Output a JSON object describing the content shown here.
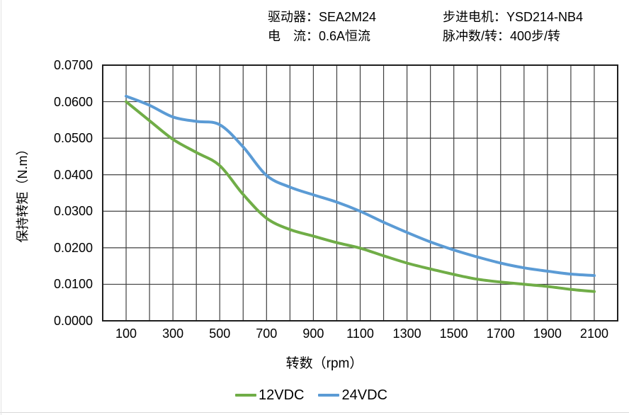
{
  "header": {
    "driver": "驱动器：SEA2M24",
    "motor": "步进电机：YSD214-NB4",
    "current": "电　流：0.6A恒流",
    "pulses": "脉冲数/转：400步/转"
  },
  "chart_data": {
    "type": "line",
    "x": [
      100,
      200,
      300,
      400,
      500,
      600,
      700,
      800,
      900,
      1000,
      1100,
      1200,
      1300,
      1400,
      1500,
      1600,
      1700,
      1800,
      1900,
      2000,
      2100
    ],
    "series": [
      {
        "name": "12VDC",
        "color": "#70AD47",
        "values": [
          0.06,
          0.0548,
          0.0497,
          0.0461,
          0.0425,
          0.0346,
          0.0281,
          0.025,
          0.0232,
          0.0214,
          0.0199,
          0.0178,
          0.0158,
          0.0142,
          0.0127,
          0.0114,
          0.0106,
          0.01,
          0.0094,
          0.0086,
          0.008
        ]
      },
      {
        "name": "24VDC",
        "color": "#5B9BD5",
        "values": [
          0.0615,
          0.059,
          0.0558,
          0.0546,
          0.0537,
          0.0476,
          0.0398,
          0.0366,
          0.0345,
          0.0325,
          0.03,
          0.027,
          0.0242,
          0.0216,
          0.0194,
          0.0175,
          0.0158,
          0.0145,
          0.0136,
          0.0128,
          0.0124
        ]
      }
    ],
    "xlabel": "转数（rpm）",
    "ylabel": "保持转矩（N.m）",
    "xlim": [
      0,
      2200
    ],
    "ylim": [
      0,
      0.07
    ],
    "x_gridline_step": 100,
    "y_gridline_step": 0.01,
    "xticks": [
      "100",
      "300",
      "500",
      "700",
      "900",
      "1100",
      "1300",
      "1500",
      "1700",
      "1900",
      "2100"
    ],
    "yticks": [
      "0.0700",
      "0.0600",
      "0.0500",
      "0.0400",
      "0.0300",
      "0.0200",
      "0.0100",
      "0.0000"
    ],
    "grid": "on",
    "legend_position": "bottom",
    "grid_color": "#404040",
    "border_color": "#1f1f1f"
  }
}
